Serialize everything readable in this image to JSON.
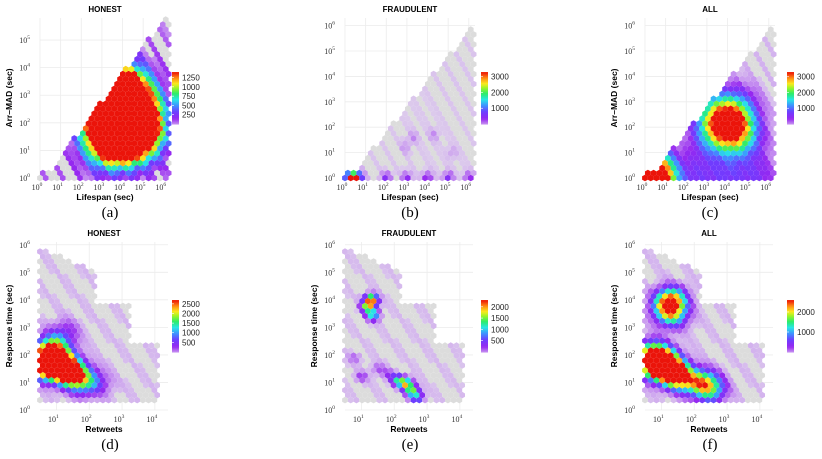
{
  "chart_data": [
    {
      "type": "heatmap",
      "panel": "a",
      "title": "HONEST",
      "xlabel": "Lifespan (sec)",
      "ylabel": "Arr–MAD (sec)",
      "xscale": "log",
      "yscale": "log",
      "xticks": [
        "10",
        "10",
        "10",
        "10",
        "10",
        "10",
        "10"
      ],
      "xtick_exp": [
        "0",
        "1",
        "2",
        "3",
        "4",
        "5",
        "6"
      ],
      "yticks": [
        "10",
        "10",
        "10",
        "10",
        "10",
        "10"
      ],
      "ytick_exp": [
        "0",
        "1",
        "2",
        "3",
        "4",
        "5"
      ],
      "xlim": [
        0,
        6.3
      ],
      "ylim": [
        0,
        5.8
      ],
      "legend_ticks": [
        "1250",
        "1000",
        "750",
        "500",
        "250"
      ],
      "legend_range": [
        0,
        1400
      ],
      "caption": "(a)",
      "cells": [
        [
          4.1,
          2.1,
          1400
        ],
        [
          3.8,
          2.2,
          1300
        ],
        [
          4.4,
          2.2,
          1100
        ],
        [
          3.9,
          2.6,
          1000
        ],
        [
          3.5,
          2.0,
          950
        ],
        [
          4.6,
          1.8,
          900
        ],
        [
          3.2,
          1.7,
          700
        ],
        [
          4.0,
          1.6,
          800
        ],
        [
          4.9,
          2.5,
          550
        ],
        [
          2.9,
          2.1,
          450
        ],
        [
          3.6,
          3.0,
          600
        ],
        [
          4.4,
          2.9,
          700
        ],
        [
          5.1,
          1.5,
          500
        ],
        [
          4.2,
          3.3,
          400
        ],
        [
          2.7,
          1.4,
          300
        ],
        [
          3.4,
          1.3,
          350
        ],
        [
          5.4,
          2.0,
          300
        ],
        [
          3.0,
          3.1,
          260
        ]
      ],
      "support": "triangle",
      "spread": 2.0,
      "fringe": 200
    },
    {
      "type": "heatmap",
      "panel": "b",
      "title": "FRAUDULENT",
      "xlabel": "Lifespan (sec)",
      "ylabel": "",
      "xscale": "log",
      "yscale": "log",
      "xticks": [
        "10",
        "10",
        "10",
        "10",
        "10",
        "10",
        "10"
      ],
      "xtick_exp": [
        "0",
        "1",
        "2",
        "3",
        "4",
        "5",
        "6"
      ],
      "yticks": [
        "10",
        "10",
        "10",
        "10",
        "10",
        "10",
        "10"
      ],
      "ytick_exp": [
        "0",
        "1",
        "2",
        "3",
        "4",
        "5",
        "6"
      ],
      "xlim": [
        0,
        6.3
      ],
      "ylim": [
        0,
        6.3
      ],
      "legend_ticks": [
        "3000",
        "2000",
        "1000"
      ],
      "legend_range": [
        0,
        3300
      ],
      "caption": "(b)",
      "cells": [
        [
          0.2,
          0.0,
          2000
        ],
        [
          0.5,
          0.0,
          3300
        ],
        [
          0.8,
          0.0,
          400
        ],
        [
          2.0,
          0.0,
          700
        ],
        [
          3.0,
          0.0,
          650
        ],
        [
          4.0,
          0.0,
          700
        ],
        [
          5.0,
          0.0,
          750
        ],
        [
          6.0,
          0.0,
          600
        ],
        [
          3.3,
          1.6,
          260
        ],
        [
          4.3,
          1.7,
          250
        ],
        [
          2.9,
          1.2,
          220
        ],
        [
          5.2,
          1.0,
          200
        ]
      ],
      "support": "triangle",
      "spread": 0.5,
      "fringe": 80
    },
    {
      "type": "heatmap",
      "panel": "c",
      "title": "ALL",
      "xlabel": "Lifespan (sec)",
      "ylabel": "Arr–MAD (sec)",
      "xscale": "log",
      "yscale": "log",
      "xticks": [
        "10",
        "10",
        "10",
        "10",
        "10",
        "10",
        "10"
      ],
      "xtick_exp": [
        "0",
        "1",
        "2",
        "3",
        "4",
        "5",
        "6"
      ],
      "yticks": [
        "10",
        "10",
        "10",
        "10",
        "10",
        "10",
        "10"
      ],
      "ytick_exp": [
        "0",
        "1",
        "2",
        "3",
        "4",
        "5",
        "6"
      ],
      "xlim": [
        0,
        6.3
      ],
      "ylim": [
        0,
        6.3
      ],
      "legend_ticks": [
        "3000",
        "2000",
        "1000"
      ],
      "legend_range": [
        0,
        3300
      ],
      "caption": "(c)",
      "cells": [
        [
          0.2,
          0.0,
          2000
        ],
        [
          0.5,
          0.0,
          3300
        ],
        [
          0.8,
          0.0,
          500
        ],
        [
          2.5,
          0.0,
          650
        ],
        [
          4.0,
          0.0,
          700
        ],
        [
          5.5,
          0.0,
          650
        ],
        [
          4.1,
          2.0,
          1500
        ],
        [
          3.7,
          2.3,
          1250
        ],
        [
          4.4,
          1.9,
          1150
        ],
        [
          3.3,
          2.4,
          900
        ],
        [
          4.6,
          2.7,
          800
        ],
        [
          3.0,
          1.6,
          650
        ],
        [
          5.0,
          1.6,
          650
        ]
      ],
      "support": "triangle",
      "spread": 1.9,
      "fringe": 150
    },
    {
      "type": "heatmap",
      "panel": "d",
      "title": "HONEST",
      "xlabel": "Retweets",
      "ylabel": "Response time (sec)",
      "xscale": "log",
      "yscale": "log",
      "xticks": [
        "10",
        "10",
        "10",
        "10"
      ],
      "xtick_exp": [
        "1",
        "2",
        "3",
        "4"
      ],
      "yticks": [
        "10",
        "10",
        "10",
        "10",
        "10",
        "10",
        "10"
      ],
      "ytick_exp": [
        "0",
        "1",
        "2",
        "3",
        "4",
        "5",
        "6"
      ],
      "xlim": [
        0.5,
        4.4
      ],
      "ylim": [
        0,
        6.1
      ],
      "legend_ticks": [
        "2500",
        "2000",
        "1500",
        "1000",
        "500"
      ],
      "legend_range": [
        0,
        2700
      ],
      "caption": "(d)",
      "cells": [
        [
          1.0,
          1.8,
          2600
        ],
        [
          0.8,
          1.7,
          2100
        ],
        [
          1.2,
          1.5,
          2300
        ],
        [
          1.4,
          1.4,
          1700
        ],
        [
          0.7,
          2.1,
          1500
        ],
        [
          1.0,
          2.4,
          1100
        ],
        [
          1.6,
          1.2,
          1000
        ],
        [
          0.6,
          1.5,
          1300
        ],
        [
          1.8,
          1.0,
          700
        ],
        [
          2.0,
          1.1,
          450
        ],
        [
          1.3,
          2.9,
          350
        ],
        [
          2.3,
          0.9,
          300
        ]
      ],
      "support": "tweet",
      "spread": 0.9,
      "fringe": 120
    },
    {
      "type": "heatmap",
      "panel": "e",
      "title": "FRAUDULENT",
      "xlabel": "Retweets",
      "ylabel": "Response time (sec)",
      "xscale": "log",
      "yscale": "log",
      "xticks": [
        "10",
        "10",
        "10",
        "10"
      ],
      "xtick_exp": [
        "1",
        "2",
        "3",
        "4"
      ],
      "yticks": [
        "10",
        "10",
        "10",
        "10",
        "10",
        "10",
        "10"
      ],
      "ytick_exp": [
        "0",
        "1",
        "2",
        "3",
        "4",
        "5",
        "6"
      ],
      "xlim": [
        0.5,
        4.4
      ],
      "ylim": [
        0,
        6.1
      ],
      "legend_ticks": [
        "2000",
        "1500",
        "1000",
        "500"
      ],
      "legend_range": [
        0,
        2300
      ],
      "caption": "(e)",
      "cells": [
        [
          1.3,
          4.0,
          2200
        ],
        [
          1.2,
          3.75,
          1600
        ],
        [
          1.35,
          3.45,
          1200
        ],
        [
          2.1,
          1.1,
          1100
        ],
        [
          2.35,
          0.95,
          1800
        ],
        [
          2.55,
          0.7,
          1400
        ],
        [
          2.7,
          0.45,
          900
        ],
        [
          1.0,
          1.2,
          350
        ],
        [
          1.5,
          1.5,
          300
        ],
        [
          1.8,
          1.3,
          320
        ],
        [
          0.8,
          1.9,
          260
        ]
      ],
      "support": "tweet",
      "spread": 0.4,
      "fringe": 90
    },
    {
      "type": "heatmap",
      "panel": "f",
      "title": "ALL",
      "xlabel": "Retweets",
      "ylabel": "Response time (sec)",
      "xscale": "log",
      "yscale": "log",
      "xticks": [
        "10",
        "10",
        "10",
        "10"
      ],
      "xtick_exp": [
        "1",
        "2",
        "3",
        "4"
      ],
      "yticks": [
        "10",
        "10",
        "10",
        "10",
        "10",
        "10",
        "10"
      ],
      "ytick_exp": [
        "0",
        "1",
        "2",
        "3",
        "4",
        "5",
        "6"
      ],
      "xlim": [
        0.5,
        4.4
      ],
      "ylim": [
        0,
        6.1
      ],
      "legend_ticks": [
        "2000",
        "1000"
      ],
      "legend_range": [
        0,
        2600
      ],
      "caption": "(f)",
      "cells": [
        [
          1.0,
          1.8,
          2600
        ],
        [
          0.8,
          1.6,
          2300
        ],
        [
          1.2,
          1.5,
          2200
        ],
        [
          1.4,
          1.3,
          1600
        ],
        [
          0.7,
          2.1,
          1500
        ],
        [
          1.6,
          1.2,
          1200
        ],
        [
          1.3,
          4.0,
          2000
        ],
        [
          1.2,
          3.7,
          1400
        ],
        [
          1.35,
          3.4,
          1000
        ],
        [
          2.3,
          1.0,
          1500
        ],
        [
          2.5,
          0.7,
          1100
        ],
        [
          1.9,
          1.0,
          700
        ]
      ],
      "support": "tweet",
      "spread": 0.9,
      "fringe": 120
    }
  ]
}
